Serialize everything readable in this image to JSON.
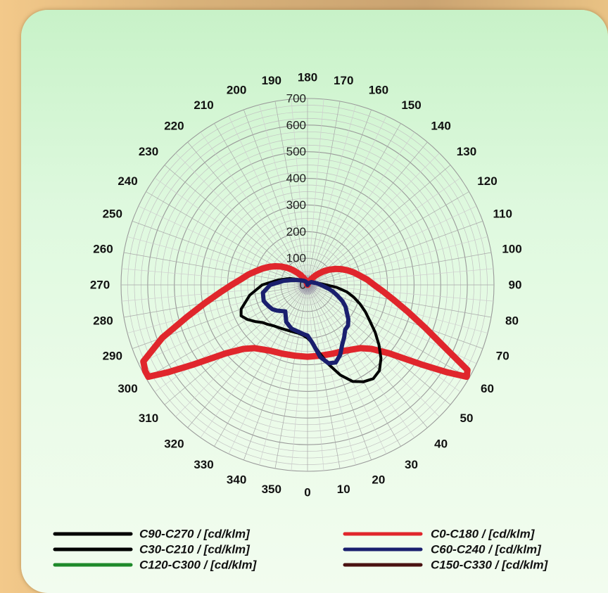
{
  "chart_data": {
    "type": "polar-line",
    "title": "",
    "angular_axis": {
      "unit": "degrees",
      "ticks": [
        0,
        10,
        20,
        30,
        40,
        50,
        60,
        70,
        80,
        90,
        100,
        110,
        120,
        130,
        140,
        150,
        160,
        170,
        180,
        190,
        200,
        210,
        220,
        230,
        240,
        250,
        260,
        270,
        280,
        290,
        300,
        310,
        320,
        330,
        340,
        350
      ],
      "direction": "counterclockwise",
      "zero_at": "bottom"
    },
    "radial_axis": {
      "range": [
        0,
        700
      ],
      "ticks": [
        0,
        100,
        200,
        300,
        400,
        500,
        600,
        700
      ],
      "ticks_along_angle": 180
    },
    "grid": true,
    "legend": {
      "placement": "bottom",
      "entries": [
        {
          "label": "C90-C270 / [cd/klm]",
          "color": "#000000"
        },
        {
          "label": "C0-C180 / [cd/klm]",
          "color": "#e0262c"
        },
        {
          "label": "C30-C210 / [cd/klm]",
          "color": "#000000"
        },
        {
          "label": "C60-C240 / [cd/klm]",
          "color": "#1a1f6e"
        },
        {
          "label": "C120-C300 / [cd/klm]",
          "color": "#1e8a2a"
        },
        {
          "label": "C150-C330 / [cd/klm]",
          "color": "#4a1212"
        }
      ]
    },
    "series": [
      {
        "name": "C0-C180 / [cd/klm]",
        "color": "#e0262c",
        "width": 9,
        "angle": [
          0,
          10,
          20,
          30,
          40,
          45,
          50,
          55,
          58,
          60,
          62,
          65,
          70,
          75,
          80,
          85,
          90,
          95,
          100,
          105,
          110,
          115,
          120,
          125,
          130,
          135,
          140,
          145,
          150,
          155,
          160,
          165,
          170,
          175,
          180,
          185,
          190,
          195,
          200,
          205,
          210,
          215,
          220,
          225,
          230,
          235,
          240,
          245,
          250,
          255,
          260,
          265,
          270,
          275,
          280,
          285,
          290,
          295,
          298,
          300,
          302,
          305,
          310,
          315,
          320,
          330,
          340,
          350
        ],
        "value": [
          270,
          270,
          275,
          285,
          310,
          340,
          400,
          520,
          620,
          690,
          680,
          580,
          470,
          390,
          330,
          285,
          250,
          225,
          200,
          180,
          160,
          140,
          120,
          100,
          80,
          60,
          45,
          30,
          20,
          10,
          5,
          0,
          0,
          0,
          0,
          0,
          0,
          5,
          10,
          20,
          30,
          45,
          60,
          80,
          100,
          120,
          140,
          160,
          180,
          200,
          225,
          250,
          285,
          330,
          390,
          470,
          580,
          680,
          690,
          690,
          620,
          520,
          400,
          340,
          310,
          285,
          275,
          270
        ]
      },
      {
        "name": "C90-C270 / [cd/klm]",
        "color": "#000000",
        "width": 4,
        "angle": [
          0,
          5,
          10,
          15,
          20,
          25,
          30,
          35,
          40,
          45,
          50,
          55,
          60,
          65,
          70,
          75,
          80,
          85,
          90,
          100,
          110,
          120,
          130,
          140,
          150,
          160,
          170,
          180,
          190,
          200,
          210,
          220,
          230,
          240,
          250,
          260,
          270,
          280,
          290,
          295,
          300,
          305,
          310,
          315,
          320,
          330,
          340,
          350,
          355
        ],
        "value": [
          200,
          220,
          260,
          310,
          360,
          400,
          420,
          430,
          420,
          390,
          350,
          310,
          270,
          240,
          210,
          180,
          150,
          110,
          70,
          40,
          30,
          20,
          20,
          15,
          10,
          5,
          5,
          0,
          5,
          10,
          15,
          20,
          30,
          40,
          70,
          110,
          170,
          220,
          265,
          275,
          260,
          240,
          220,
          210,
          200,
          190,
          185,
          185,
          190
        ]
      },
      {
        "name": "C60-C240 / [cd/klm]",
        "color": "#1a1f6e",
        "width": 6,
        "angle": [
          0,
          5,
          10,
          15,
          20,
          25,
          30,
          35,
          40,
          45,
          50,
          55,
          60,
          65,
          70,
          75,
          80,
          90,
          100,
          110,
          120,
          130,
          140,
          150,
          160,
          170,
          180,
          190,
          200,
          210,
          220,
          230,
          240,
          250,
          260,
          270,
          280,
          290,
          295,
          300,
          305,
          310,
          320,
          330,
          340,
          350,
          355
        ],
        "value": [
          190,
          220,
          275,
          305,
          310,
          290,
          260,
          240,
          220,
          215,
          200,
          180,
          165,
          145,
          120,
          100,
          80,
          50,
          35,
          25,
          20,
          15,
          10,
          5,
          5,
          0,
          0,
          5,
          10,
          15,
          20,
          25,
          35,
          55,
          90,
          140,
          170,
          175,
          170,
          165,
          160,
          150,
          130,
          160,
          175,
          180,
          185
        ]
      },
      {
        "name": "C30-C210 / [cd/klm]",
        "color": "#000000",
        "width": 3,
        "angle": [],
        "value": []
      },
      {
        "name": "C120-C300 / [cd/klm]",
        "color": "#1e8a2a",
        "width": 3,
        "angle": [],
        "value": []
      },
      {
        "name": "C150-C330 / [cd/klm]",
        "color": "#4a1212",
        "width": 3,
        "angle": [],
        "value": []
      }
    ]
  }
}
